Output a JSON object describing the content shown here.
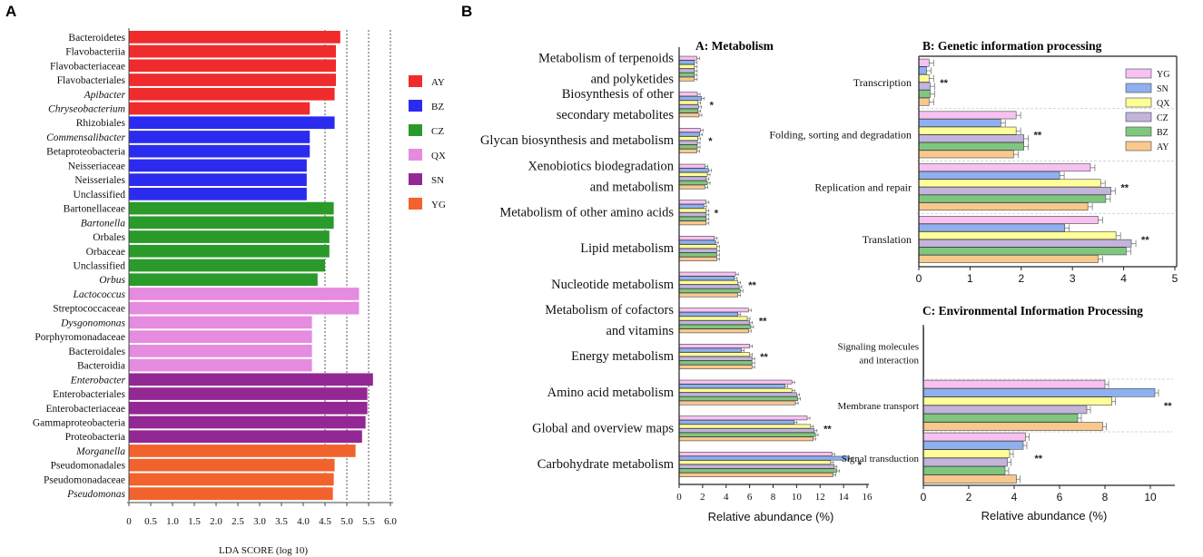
{
  "panel_labels": {
    "a": "A",
    "b": "B"
  },
  "chart_data": [
    {
      "type": "bar",
      "orientation": "horizontal",
      "panel": "A",
      "title": "",
      "xlabel": "LDA SCORE (log 10)",
      "xlim": [
        0,
        6.0
      ],
      "xticks": [
        "0",
        "0.5",
        "1.0",
        "1.5",
        "2.0",
        "2.5",
        "3.0",
        "3.5",
        "4.0",
        "4.5",
        "5.0",
        "5.5",
        "6.0"
      ],
      "grid_lines_at": [
        4.5,
        5.0,
        5.5,
        6.0
      ],
      "groups": [
        {
          "name": "AY",
          "color": "#f02b2b"
        },
        {
          "name": "BZ",
          "color": "#2b2bf0"
        },
        {
          "name": "CZ",
          "color": "#2a9a2a"
        },
        {
          "name": "QX",
          "color": "#e58be0"
        },
        {
          "name": "SN",
          "color": "#932793"
        },
        {
          "name": "YG",
          "color": "#f2622c"
        }
      ],
      "bars": [
        {
          "label": "Bacteroidetes",
          "value": 4.85,
          "group": "AY",
          "italic": false
        },
        {
          "label": "Flavobacteriia",
          "value": 4.75,
          "group": "AY",
          "italic": false
        },
        {
          "label": "Flavobacteriaceae",
          "value": 4.75,
          "group": "AY",
          "italic": false
        },
        {
          "label": "Flavobacteriales",
          "value": 4.75,
          "group": "AY",
          "italic": false
        },
        {
          "label": "Apibacter",
          "value": 4.72,
          "group": "AY",
          "italic": true
        },
        {
          "label": "Chryseobacterium",
          "value": 4.15,
          "group": "AY",
          "italic": true
        },
        {
          "label": "Rhizobiales",
          "value": 4.72,
          "group": "BZ",
          "italic": false
        },
        {
          "label": "Commensalibacter",
          "value": 4.15,
          "group": "BZ",
          "italic": true
        },
        {
          "label": "Betaproteobacteria",
          "value": 4.15,
          "group": "BZ",
          "italic": false
        },
        {
          "label": "Neisseriaceae",
          "value": 4.08,
          "group": "BZ",
          "italic": false
        },
        {
          "label": "Neisseriales",
          "value": 4.08,
          "group": "BZ",
          "italic": false
        },
        {
          "label": "Unclassified",
          "value": 4.08,
          "group": "BZ",
          "italic": false
        },
        {
          "label": "Bartonellaceae",
          "value": 4.7,
          "group": "CZ",
          "italic": false
        },
        {
          "label": "Bartonella",
          "value": 4.7,
          "group": "CZ",
          "italic": true
        },
        {
          "label": "Orbales",
          "value": 4.6,
          "group": "CZ",
          "italic": false
        },
        {
          "label": "Orbaceae",
          "value": 4.6,
          "group": "CZ",
          "italic": false
        },
        {
          "label": "Unclassified",
          "value": 4.5,
          "group": "CZ",
          "italic": false
        },
        {
          "label": "Orbus",
          "value": 4.33,
          "group": "CZ",
          "italic": true
        },
        {
          "label": "Lactococcus",
          "value": 5.28,
          "group": "QX",
          "italic": true
        },
        {
          "label": "Streptococcaceae",
          "value": 5.28,
          "group": "QX",
          "italic": false
        },
        {
          "label": "Dysgonomonas",
          "value": 4.2,
          "group": "QX",
          "italic": true
        },
        {
          "label": "Porphyromonadaceae",
          "value": 4.2,
          "group": "QX",
          "italic": false
        },
        {
          "label": "Bacteroidales",
          "value": 4.2,
          "group": "QX",
          "italic": false
        },
        {
          "label": "Bacteroidia",
          "value": 4.2,
          "group": "QX",
          "italic": false
        },
        {
          "label": "Enterobacter",
          "value": 5.6,
          "group": "SN",
          "italic": true
        },
        {
          "label": "Enterobacteriales",
          "value": 5.47,
          "group": "SN",
          "italic": false
        },
        {
          "label": "Enterobacteriaceae",
          "value": 5.47,
          "group": "SN",
          "italic": false
        },
        {
          "label": "Gammaproteobacteria",
          "value": 5.43,
          "group": "SN",
          "italic": false
        },
        {
          "label": "Proteobacteria",
          "value": 5.35,
          "group": "SN",
          "italic": false
        },
        {
          "label": "Morganella",
          "value": 5.2,
          "group": "YG",
          "italic": true
        },
        {
          "label": "Pseudomonadales",
          "value": 4.72,
          "group": "YG",
          "italic": false
        },
        {
          "label": "Pseudomonadaceae",
          "value": 4.7,
          "group": "YG",
          "italic": false
        },
        {
          "label": "Pseudomonas",
          "value": 4.68,
          "group": "YG",
          "italic": true
        }
      ]
    },
    {
      "type": "bar",
      "orientation": "horizontal-grouped",
      "panel": "B-A",
      "title": "A: Metabolism",
      "xlabel": "Relative abundance (%)",
      "xlim": [
        0,
        16
      ],
      "xticks": [
        "0",
        "2",
        "4",
        "6",
        "8",
        "10",
        "12",
        "14",
        "16"
      ],
      "series_order": [
        "YG",
        "SN",
        "QX",
        "CZ",
        "BZ",
        "AY"
      ],
      "categories": [
        {
          "lines": [
            "Metabolism of terpenoids",
            "and polyketides"
          ],
          "values": [
            1.5,
            1.3,
            1.3,
            1.3,
            1.3,
            1.3
          ],
          "sig": ""
        },
        {
          "lines": [
            "Biosynthesis of  other",
            "secondary metabolites"
          ],
          "values": [
            1.55,
            1.9,
            1.6,
            1.65,
            1.6,
            1.7
          ],
          "sig": "*"
        },
        {
          "lines": [
            "Glycan biosynthesis and metabolism"
          ],
          "values": [
            1.8,
            1.75,
            1.6,
            1.55,
            1.55,
            1.5
          ],
          "sig": "*"
        },
        {
          "lines": [
            "Xenobiotics biodegradation",
            "and metabolism"
          ],
          "values": [
            2.2,
            2.5,
            2.4,
            2.3,
            2.4,
            2.2
          ],
          "sig": ""
        },
        {
          "lines": [
            "Metabolism of other amino acids"
          ],
          "values": [
            2.3,
            2.1,
            2.3,
            2.3,
            2.3,
            2.3
          ],
          "sig": "*"
        },
        {
          "lines": [
            "Lipid metabolism"
          ],
          "values": [
            3.0,
            3.1,
            3.2,
            3.2,
            3.2,
            3.2
          ],
          "sig": ""
        },
        {
          "lines": [
            "Nucleotide metabolism"
          ],
          "values": [
            4.8,
            4.7,
            5.0,
            5.1,
            5.2,
            5.0
          ],
          "sig": "**"
        },
        {
          "lines": [
            "Metabolism of cofactors",
            "and vitamins"
          ],
          "values": [
            5.9,
            5.0,
            5.8,
            6.0,
            6.1,
            5.9
          ],
          "sig": "**"
        },
        {
          "lines": [
            "Energy metabolism"
          ],
          "values": [
            6.0,
            5.3,
            6.0,
            6.2,
            6.2,
            6.2
          ],
          "sig": "**"
        },
        {
          "lines": [
            "Amino acid metabolism"
          ],
          "values": [
            9.6,
            9.0,
            9.6,
            10.0,
            10.1,
            9.9
          ],
          "sig": ""
        },
        {
          "lines": [
            "Global and overview maps"
          ],
          "values": [
            10.9,
            9.8,
            11.2,
            11.5,
            11.6,
            11.4
          ],
          "sig": "**"
        },
        {
          "lines": [
            "Carbohydrate metabolism"
          ],
          "values": [
            13.0,
            14.5,
            12.9,
            13.2,
            13.4,
            13.1
          ],
          "sig": "*"
        }
      ]
    },
    {
      "type": "bar",
      "orientation": "horizontal-grouped",
      "panel": "B-B",
      "title": "B: Genetic information processing",
      "xlabel": "",
      "xlim": [
        0,
        5
      ],
      "xticks": [
        "0",
        "1",
        "2",
        "3",
        "4",
        "5"
      ],
      "series_order": [
        "YG",
        "SN",
        "QX",
        "CZ",
        "BZ",
        "AY"
      ],
      "categories": [
        {
          "lines": [
            "Transcription"
          ],
          "values": [
            0.2,
            0.15,
            0.2,
            0.22,
            0.22,
            0.2
          ],
          "sig": "**"
        },
        {
          "lines": [
            "Folding, sorting and degradation"
          ],
          "values": [
            1.9,
            1.6,
            1.9,
            2.05,
            2.05,
            1.85
          ],
          "sig": "**"
        },
        {
          "lines": [
            "Replication and repair"
          ],
          "values": [
            3.35,
            2.75,
            3.55,
            3.75,
            3.65,
            3.3
          ],
          "sig": "**"
        },
        {
          "lines": [
            "Translation"
          ],
          "values": [
            3.5,
            2.85,
            3.85,
            4.15,
            4.05,
            3.5
          ],
          "sig": "**"
        }
      ]
    },
    {
      "type": "bar",
      "orientation": "horizontal-grouped",
      "panel": "B-C",
      "title": "C: Environmental Information Processing",
      "xlabel": "Relative abundance (%)",
      "xlim": [
        0,
        11
      ],
      "xticks": [
        "0",
        "2",
        "4",
        "6",
        "8",
        "10"
      ],
      "series_order": [
        "YG",
        "SN",
        "QX",
        "CZ",
        "BZ",
        "AY"
      ],
      "categories": [
        {
          "lines": [
            "Signaling molecules",
            "and interaction"
          ],
          "values": [
            0.02,
            0.02,
            0.02,
            0.02,
            0.02,
            0.02
          ],
          "sig": ""
        },
        {
          "lines": [
            "Membrane transport"
          ],
          "values": [
            8.0,
            10.2,
            8.3,
            7.2,
            6.8,
            7.9
          ],
          "sig": "**"
        },
        {
          "lines": [
            "Signal transduction"
          ],
          "values": [
            4.5,
            4.4,
            3.8,
            3.7,
            3.6,
            4.1
          ],
          "sig": "**"
        }
      ]
    }
  ],
  "legend_B": {
    "entries": [
      {
        "name": "YG",
        "color": "#f7c1f2"
      },
      {
        "name": "SN",
        "color": "#8fb0ef"
      },
      {
        "name": "QX",
        "color": "#ffff99"
      },
      {
        "name": "CZ",
        "color": "#c3b4dc"
      },
      {
        "name": "BZ",
        "color": "#7fc77f"
      },
      {
        "name": "AY",
        "color": "#f8c88d"
      }
    ]
  }
}
